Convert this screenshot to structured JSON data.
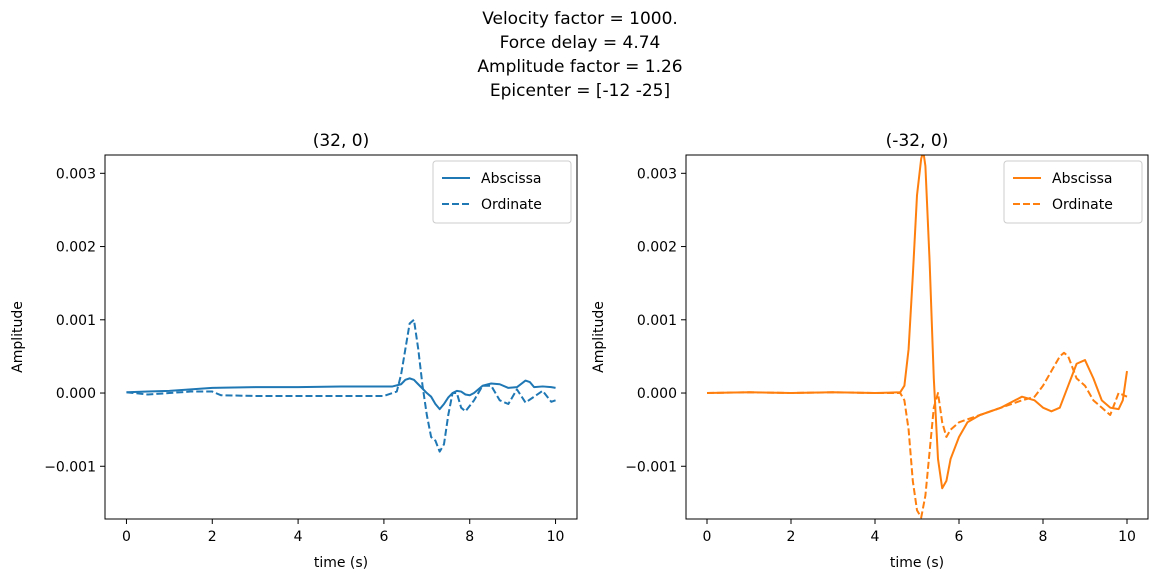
{
  "figure": {
    "suptitle": [
      "Velocity factor = 1000.",
      "Force delay = 4.74",
      "Amplitude factor = 1.26",
      "Epicenter = [-12 -25]"
    ]
  },
  "chart_data": [
    {
      "type": "line",
      "title": "(32, 0)",
      "xlabel": "time (s)",
      "ylabel": "Amplitude",
      "xlim": [
        -0.5,
        10.5
      ],
      "ylim": [
        -0.00172,
        0.00325
      ],
      "xticks": [
        0,
        2,
        4,
        6,
        8,
        10
      ],
      "xtick_labels": [
        "0",
        "2",
        "4",
        "6",
        "8",
        "10"
      ],
      "yticks": [
        -0.001,
        0.0,
        0.001,
        0.002,
        0.003
      ],
      "ytick_labels": [
        "−0.001",
        "0.000",
        "0.001",
        "0.002",
        "0.003"
      ],
      "legend": "top-right",
      "series": [
        {
          "name": "Abscissa",
          "style": "solid",
          "color": "#1f77b4",
          "x": [
            0,
            0.5,
            1,
            1.5,
            2,
            3,
            4,
            5,
            5.5,
            6,
            6.2,
            6.4,
            6.5,
            6.6,
            6.7,
            6.8,
            6.9,
            7.0,
            7.1,
            7.2,
            7.3,
            7.4,
            7.5,
            7.6,
            7.7,
            7.8,
            7.9,
            8.0,
            8.1,
            8.3,
            8.5,
            8.7,
            8.9,
            9.1,
            9.3,
            9.4,
            9.5,
            9.7,
            9.9,
            10
          ],
          "y": [
            1e-05,
            2e-05,
            3e-05,
            5e-05,
            7e-05,
            8e-05,
            8e-05,
            9e-05,
            9e-05,
            9e-05,
            9e-05,
            0.00012,
            0.00018,
            0.0002,
            0.00018,
            0.00012,
            6e-05,
            0.0,
            -5e-05,
            -0.00015,
            -0.00022,
            -0.00015,
            -6e-05,
            0.0,
            3e-05,
            2e-05,
            -2e-05,
            -3e-05,
            0.0,
            0.0001,
            0.00013,
            0.00012,
            7e-05,
            8e-05,
            0.00017,
            0.00015,
            8e-05,
            9e-05,
            8e-05,
            7e-05
          ]
        },
        {
          "name": "Ordinate",
          "style": "dashed",
          "color": "#1f77b4",
          "x": [
            0,
            0.5,
            1,
            1.5,
            2,
            2.2,
            3,
            4,
            5,
            6,
            6.3,
            6.4,
            6.5,
            6.6,
            6.7,
            6.8,
            6.9,
            7.0,
            7.1,
            7.2,
            7.3,
            7.4,
            7.5,
            7.6,
            7.7,
            7.8,
            7.9,
            8.1,
            8.3,
            8.5,
            8.7,
            8.9,
            9.1,
            9.3,
            9.5,
            9.7,
            9.9,
            10
          ],
          "y": [
            1e-05,
            -2e-05,
            0.0,
            2e-05,
            2e-05,
            -3e-05,
            -4e-05,
            -4e-05,
            -4e-05,
            -4e-05,
            2e-05,
            0.00025,
            0.0006,
            0.00095,
            0.001,
            0.0006,
            0.0001,
            -0.0003,
            -0.0006,
            -0.00065,
            -0.0008,
            -0.0007,
            -0.0003,
            0.0,
            0.0,
            -0.0002,
            -0.00025,
            -0.0001,
            0.0001,
            0.0001,
            -0.0001,
            -0.00015,
            5e-05,
            -0.00013,
            -5e-05,
            3e-05,
            -0.00012,
            -0.0001
          ]
        }
      ]
    },
    {
      "type": "line",
      "title": "(-32, 0)",
      "xlabel": "time (s)",
      "ylabel": "Amplitude",
      "xlim": [
        -0.5,
        10.5
      ],
      "ylim": [
        -0.00172,
        0.00325
      ],
      "xticks": [
        0,
        2,
        4,
        6,
        8,
        10
      ],
      "xtick_labels": [
        "0",
        "2",
        "4",
        "6",
        "8",
        "10"
      ],
      "yticks": [
        -0.001,
        0.0,
        0.001,
        0.002,
        0.003
      ],
      "ytick_labels": [
        "−0.001",
        "0.000",
        "0.001",
        "0.002",
        "0.003"
      ],
      "legend": "top-right",
      "series": [
        {
          "name": "Abscissa",
          "style": "solid",
          "color": "#ff7f0e",
          "x": [
            0,
            1,
            2,
            3,
            4,
            4.6,
            4.7,
            4.8,
            4.9,
            5.0,
            5.1,
            5.15,
            5.2,
            5.3,
            5.4,
            5.5,
            5.6,
            5.7,
            5.8,
            6.0,
            6.2,
            6.5,
            7.0,
            7.5,
            7.8,
            8.0,
            8.2,
            8.4,
            8.6,
            8.8,
            9.0,
            9.2,
            9.4,
            9.6,
            9.8,
            9.9,
            10.0
          ],
          "y": [
            0.0,
            1e-05,
            0.0,
            1e-05,
            0.0,
            1e-05,
            0.0001,
            0.0006,
            0.0016,
            0.0027,
            0.0032,
            0.0033,
            0.0031,
            0.0018,
            0.0002,
            -0.0009,
            -0.0013,
            -0.0012,
            -0.0009,
            -0.0006,
            -0.0004,
            -0.0003,
            -0.0002,
            -5e-05,
            -0.0001,
            -0.0002,
            -0.00025,
            -0.0002,
            0.0001,
            0.0004,
            0.00045,
            0.0002,
            -0.0001,
            -0.0002,
            -0.00022,
            -0.0001,
            0.0003
          ]
        },
        {
          "name": "Ordinate",
          "style": "dashed",
          "color": "#ff7f0e",
          "x": [
            0,
            1,
            2,
            3,
            4,
            4.6,
            4.7,
            4.8,
            4.9,
            5.0,
            5.1,
            5.2,
            5.3,
            5.4,
            5.5,
            5.6,
            5.7,
            5.8,
            6.0,
            6.5,
            7.0,
            7.5,
            7.8,
            8.0,
            8.2,
            8.4,
            8.5,
            8.6,
            8.8,
            9.0,
            9.2,
            9.4,
            9.6,
            9.8,
            10.0
          ],
          "y": [
            0.0,
            1e-05,
            0.0,
            1e-05,
            0.0,
            0.0,
            -0.0001,
            -0.0005,
            -0.0012,
            -0.0016,
            -0.0017,
            -0.0014,
            -0.0008,
            -0.0002,
            0.0,
            -0.0004,
            -0.0006,
            -0.0005,
            -0.0004,
            -0.0003,
            -0.0002,
            -0.0001,
            -5e-05,
            0.0001,
            0.0003,
            0.0005,
            0.00055,
            0.0005,
            0.0002,
            0.0001,
            -0.0001,
            -0.0002,
            -0.0003,
            0.0,
            -5e-05
          ]
        }
      ]
    }
  ]
}
